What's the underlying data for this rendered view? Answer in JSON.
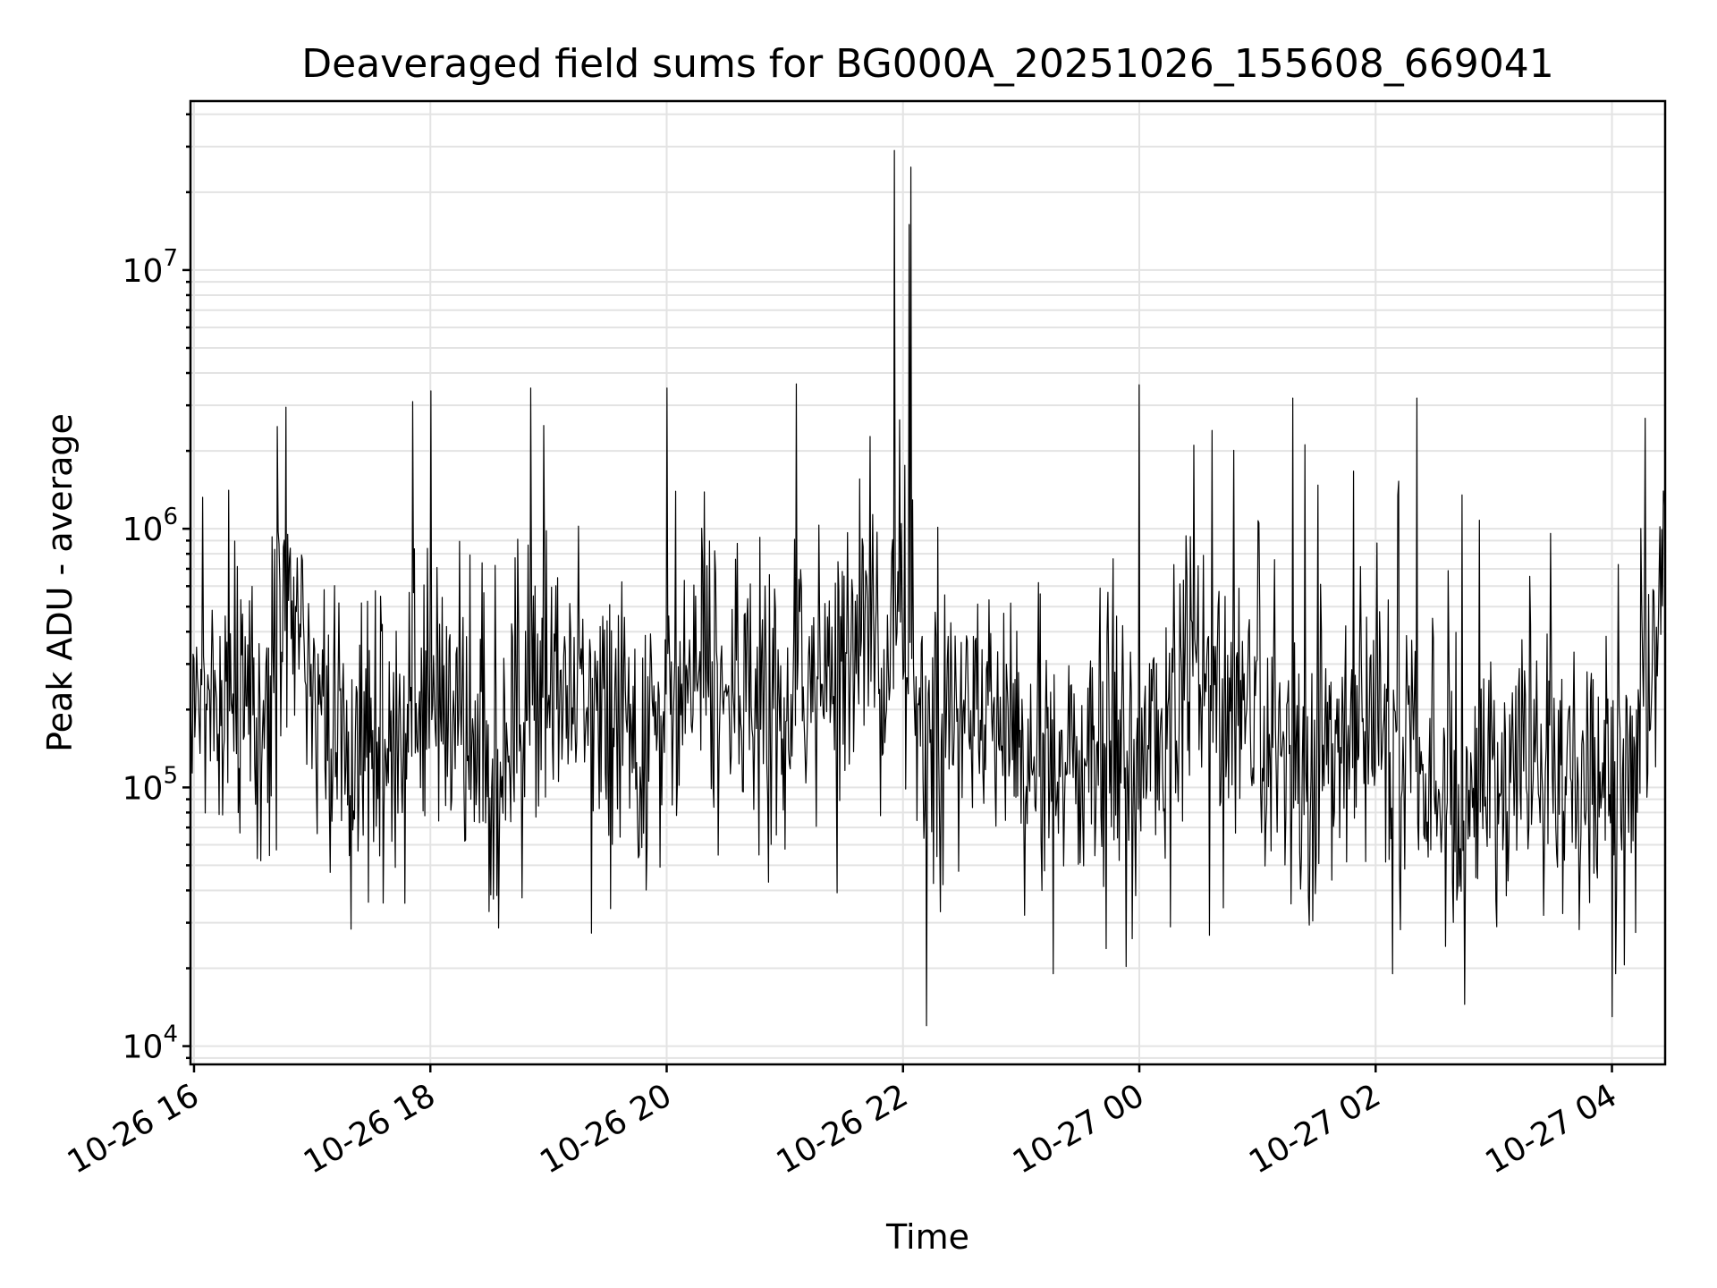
{
  "chart_data": {
    "type": "line",
    "title": "Deaveraged field sums for BG000A_20251026_155608_669041",
    "xlabel": "Time",
    "ylabel": "Peak ADU - average",
    "yscale": "log",
    "ylim": [
      8500,
      45000000
    ],
    "xlim_hours": [
      15.97,
      28.45
    ],
    "x_ticks": [
      {
        "hours": 16,
        "label": "10-26 16"
      },
      {
        "hours": 18,
        "label": "10-26 18"
      },
      {
        "hours": 20,
        "label": "10-26 20"
      },
      {
        "hours": 22,
        "label": "10-26 22"
      },
      {
        "hours": 24,
        "label": "10-27 00"
      },
      {
        "hours": 26,
        "label": "10-27 02"
      },
      {
        "hours": 28,
        "label": "10-27 04"
      }
    ],
    "y_ticks": [
      {
        "value": 10000,
        "base": "10",
        "exp": "4"
      },
      {
        "value": 100000,
        "base": "10",
        "exp": "5"
      },
      {
        "value": 1000000,
        "base": "10",
        "exp": "6"
      },
      {
        "value": 10000000,
        "base": "10",
        "exp": "7"
      }
    ],
    "grid": true,
    "series": [
      {
        "name": "Peak ADU - average",
        "color": "#000000",
        "start_hours": 15.97,
        "end_hours": 28.45,
        "n_points": 1700,
        "baseline": [
          {
            "hours": 16.0,
            "value": 250000
          },
          {
            "hours": 16.6,
            "value": 160000
          },
          {
            "hours": 16.8,
            "value": 550000
          },
          {
            "hours": 17.2,
            "value": 140000
          },
          {
            "hours": 17.6,
            "value": 120000
          },
          {
            "hours": 18.1,
            "value": 220000
          },
          {
            "hours": 18.5,
            "value": 110000
          },
          {
            "hours": 19.0,
            "value": 260000
          },
          {
            "hours": 19.4,
            "value": 180000
          },
          {
            "hours": 19.8,
            "value": 110000
          },
          {
            "hours": 20.2,
            "value": 280000
          },
          {
            "hours": 20.8,
            "value": 180000
          },
          {
            "hours": 21.3,
            "value": 280000
          },
          {
            "hours": 21.9,
            "value": 420000
          },
          {
            "hours": 22.3,
            "value": 160000
          },
          {
            "hours": 22.8,
            "value": 210000
          },
          {
            "hours": 23.2,
            "value": 110000
          },
          {
            "hours": 23.6,
            "value": 130000
          },
          {
            "hours": 24.0,
            "value": 110000
          },
          {
            "hours": 24.4,
            "value": 300000
          },
          {
            "hours": 24.9,
            "value": 150000
          },
          {
            "hours": 25.5,
            "value": 110000
          },
          {
            "hours": 25.9,
            "value": 200000
          },
          {
            "hours": 26.3,
            "value": 110000
          },
          {
            "hours": 26.8,
            "value": 90000
          },
          {
            "hours": 27.3,
            "value": 150000
          },
          {
            "hours": 27.8,
            "value": 90000
          },
          {
            "hours": 28.1,
            "value": 100000
          },
          {
            "hours": 28.4,
            "value": 500000
          }
        ],
        "peaks": [
          {
            "hours": 21.93,
            "value": 29000000
          },
          {
            "hours": 22.07,
            "value": 25000000
          },
          {
            "hours": 22.05,
            "value": 15000000
          },
          {
            "hours": 18.85,
            "value": 3500000
          },
          {
            "hours": 20.0,
            "value": 3500000
          },
          {
            "hours": 24.0,
            "value": 3600000
          },
          {
            "hours": 17.85,
            "value": 3100000
          },
          {
            "hours": 26.35,
            "value": 3200000
          },
          {
            "hours": 25.3,
            "value": 3200000
          },
          {
            "hours": 22.2,
            "value": 12000
          },
          {
            "hours": 28.0,
            "value": 13000
          },
          {
            "hours": 26.75,
            "value": 14500
          }
        ]
      }
    ]
  }
}
